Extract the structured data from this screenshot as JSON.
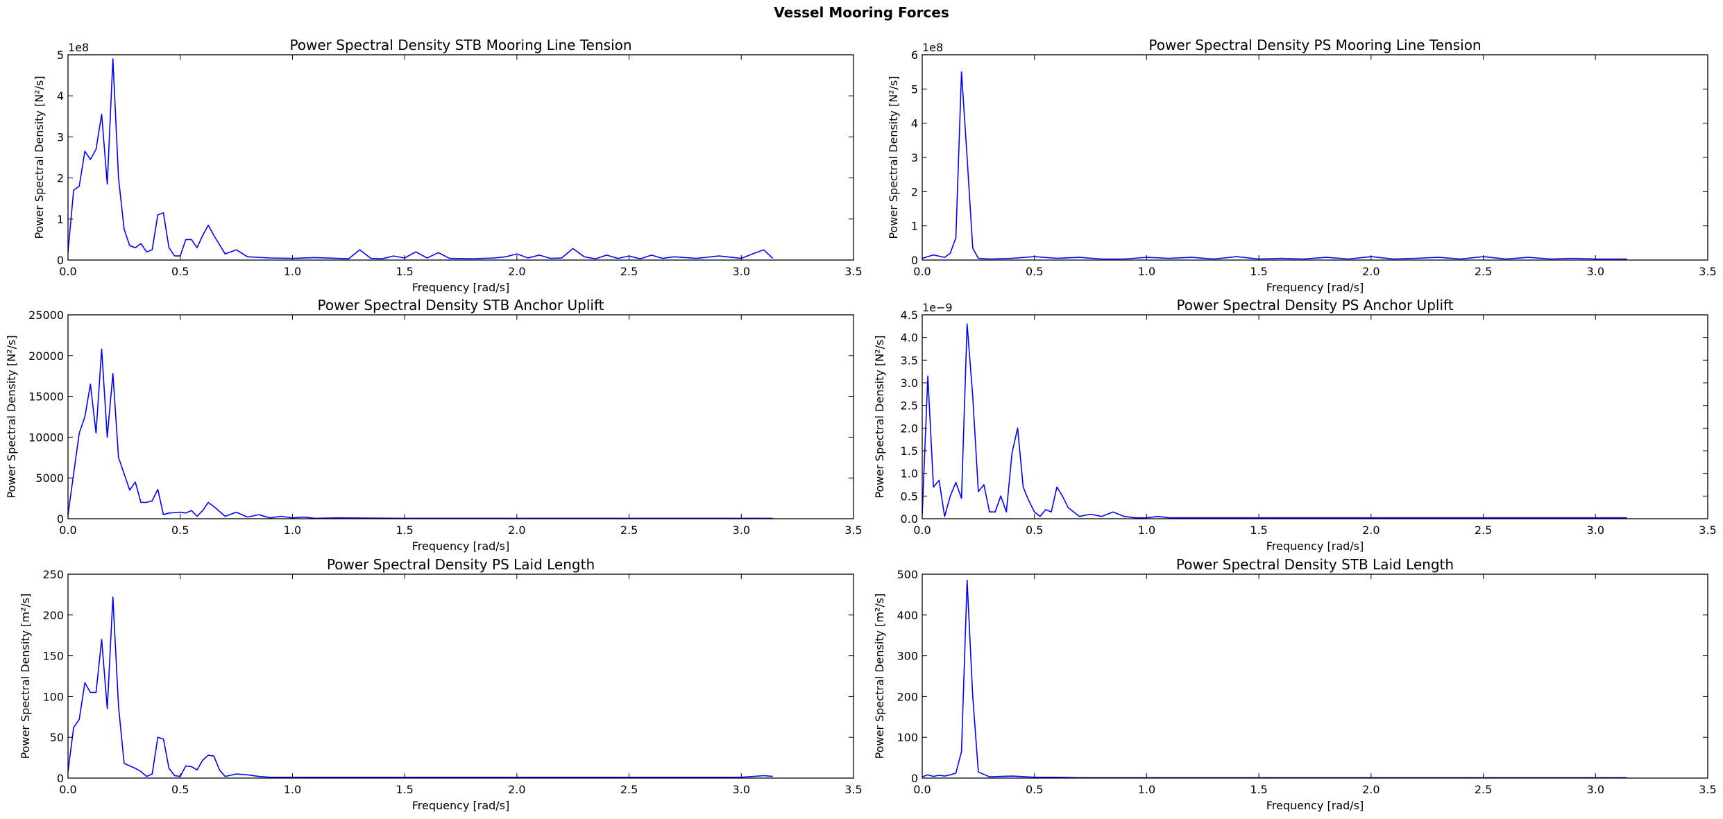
{
  "figure": {
    "title": "Vessel Mooring Forces"
  },
  "chart_data": [
    {
      "type": "line",
      "title": "Power Spectral Density STB Mooring Line Tension",
      "xlabel": "Frequency [rad/s]",
      "ylabel": "Power Spectral Density [N²/s]",
      "xlim": [
        0,
        3.5
      ],
      "ylim": [
        0,
        500000000
      ],
      "offset_label": "1e8",
      "xticks": [
        "0.0",
        "0.5",
        "1.0",
        "1.5",
        "2.0",
        "2.5",
        "3.0",
        "3.5"
      ],
      "yticks": [
        "0",
        "1",
        "2",
        "3",
        "4",
        "5"
      ],
      "ytick_scale": 100000000,
      "series": [
        {
          "color": "#0000ff",
          "x": [
            0.0,
            0.025,
            0.05,
            0.075,
            0.1,
            0.125,
            0.15,
            0.175,
            0.2,
            0.225,
            0.25,
            0.275,
            0.3,
            0.325,
            0.35,
            0.375,
            0.4,
            0.425,
            0.45,
            0.475,
            0.5,
            0.525,
            0.55,
            0.575,
            0.6,
            0.625,
            0.65,
            0.7,
            0.75,
            0.8,
            0.9,
            1.0,
            1.1,
            1.2,
            1.25,
            1.3,
            1.35,
            1.4,
            1.45,
            1.5,
            1.55,
            1.6,
            1.65,
            1.7,
            1.8,
            1.9,
            1.95,
            2.0,
            2.05,
            2.1,
            2.15,
            2.2,
            2.25,
            2.3,
            2.35,
            2.4,
            2.45,
            2.5,
            2.55,
            2.6,
            2.65,
            2.7,
            2.8,
            2.9,
            3.0,
            3.05,
            3.1,
            3.14
          ],
          "y": [
            20000000,
            170000000,
            180000000,
            265000000,
            245000000,
            270000000,
            355000000,
            185000000,
            490000000,
            200000000,
            75000000,
            35000000,
            30000000,
            40000000,
            20000000,
            25000000,
            110000000,
            115000000,
            30000000,
            10000000,
            10000000,
            50000000,
            50000000,
            30000000,
            60000000,
            85000000,
            60000000,
            15000000,
            25000000,
            8000000,
            5000000,
            4000000,
            6000000,
            4000000,
            3000000,
            25000000,
            4000000,
            3000000,
            10000000,
            5000000,
            20000000,
            5000000,
            18000000,
            4000000,
            3000000,
            5000000,
            8000000,
            15000000,
            5000000,
            12000000,
            4000000,
            5000000,
            28000000,
            8000000,
            3000000,
            12000000,
            4000000,
            10000000,
            3000000,
            12000000,
            4000000,
            8000000,
            4000000,
            10000000,
            4000000,
            15000000,
            25000000,
            4000000
          ]
        }
      ]
    },
    {
      "type": "line",
      "title": "Power Spectral Density PS Mooring Line Tension",
      "xlabel": "Frequency [rad/s]",
      "ylabel": "Power Spectral Density [N²/s]",
      "xlim": [
        0,
        3.5
      ],
      "ylim": [
        0,
        600000000
      ],
      "offset_label": "1e8",
      "xticks": [
        "0.0",
        "0.5",
        "1.0",
        "1.5",
        "2.0",
        "2.5",
        "3.0",
        "3.5"
      ],
      "yticks": [
        "0",
        "1",
        "2",
        "3",
        "4",
        "5",
        "6"
      ],
      "ytick_scale": 100000000,
      "series": [
        {
          "color": "#0000ff",
          "x": [
            0.0,
            0.05,
            0.1,
            0.125,
            0.15,
            0.175,
            0.2,
            0.225,
            0.25,
            0.3,
            0.4,
            0.5,
            0.6,
            0.7,
            0.8,
            0.9,
            1.0,
            1.1,
            1.2,
            1.3,
            1.4,
            1.5,
            1.6,
            1.7,
            1.8,
            1.9,
            2.0,
            2.1,
            2.2,
            2.3,
            2.4,
            2.5,
            2.6,
            2.7,
            2.8,
            2.9,
            3.0,
            3.14
          ],
          "y": [
            5000000,
            15000000,
            8000000,
            20000000,
            65000000,
            550000000,
            300000000,
            35000000,
            5000000,
            3000000,
            5000000,
            10000000,
            5000000,
            8000000,
            3000000,
            3000000,
            8000000,
            5000000,
            8000000,
            3000000,
            10000000,
            3000000,
            5000000,
            3000000,
            8000000,
            3000000,
            10000000,
            3000000,
            5000000,
            8000000,
            3000000,
            10000000,
            3000000,
            8000000,
            3000000,
            5000000,
            3000000,
            3000000
          ]
        }
      ]
    },
    {
      "type": "line",
      "title": "Power Spectral Density STB Anchor Uplift",
      "xlabel": "Frequency [rad/s]",
      "ylabel": "Power Spectral Density [N²/s]",
      "xlim": [
        0,
        3.5
      ],
      "ylim": [
        0,
        25000
      ],
      "xticks": [
        "0.0",
        "0.5",
        "1.0",
        "1.5",
        "2.0",
        "2.5",
        "3.0",
        "3.5"
      ],
      "yticks": [
        "0",
        "5000",
        "10000",
        "15000",
        "20000",
        "25000"
      ],
      "ytick_scale": 1,
      "series": [
        {
          "color": "#0000ff",
          "x": [
            0.0,
            0.025,
            0.05,
            0.075,
            0.1,
            0.125,
            0.15,
            0.175,
            0.2,
            0.225,
            0.25,
            0.275,
            0.3,
            0.325,
            0.35,
            0.375,
            0.4,
            0.425,
            0.45,
            0.5,
            0.525,
            0.55,
            0.575,
            0.6,
            0.625,
            0.65,
            0.7,
            0.75,
            0.8,
            0.85,
            0.9,
            0.95,
            1.0,
            1.05,
            1.1,
            1.2,
            1.5,
            2.0,
            2.5,
            3.0,
            3.14
          ],
          "y": [
            500,
            5500,
            10500,
            12500,
            16500,
            10500,
            20800,
            10000,
            17800,
            7500,
            5500,
            3500,
            4500,
            2000,
            2000,
            2200,
            3600,
            500,
            700,
            800,
            700,
            1000,
            300,
            1000,
            2000,
            1500,
            300,
            800,
            200,
            500,
            100,
            300,
            100,
            200,
            50,
            100,
            50,
            50,
            50,
            50,
            50
          ]
        }
      ]
    },
    {
      "type": "line",
      "title": "Power Spectral Density PS Anchor Uplift",
      "xlabel": "Frequency [rad/s]",
      "ylabel": "Power Spectral Density [N²/s]",
      "xlim": [
        0,
        3.5
      ],
      "ylim": [
        0,
        4.5
      ],
      "offset_label": "1e−9",
      "xticks": [
        "0.0",
        "0.5",
        "1.0",
        "1.5",
        "2.0",
        "2.5",
        "3.0",
        "3.5"
      ],
      "yticks": [
        "0.0",
        "0.5",
        "1.0",
        "1.5",
        "2.0",
        "2.5",
        "3.0",
        "3.5",
        "4.0",
        "4.5"
      ],
      "ytick_scale": 1,
      "series": [
        {
          "color": "#0000ff",
          "x": [
            0.0,
            0.025,
            0.05,
            0.075,
            0.1,
            0.125,
            0.15,
            0.175,
            0.2,
            0.225,
            0.25,
            0.275,
            0.3,
            0.325,
            0.35,
            0.375,
            0.4,
            0.425,
            0.45,
            0.475,
            0.5,
            0.525,
            0.55,
            0.575,
            0.6,
            0.625,
            0.65,
            0.7,
            0.75,
            0.8,
            0.85,
            0.9,
            0.95,
            1.0,
            1.05,
            1.1,
            1.2,
            1.5,
            2.0,
            2.5,
            3.0,
            3.14
          ],
          "y": [
            0.1,
            3.15,
            0.7,
            0.85,
            0.05,
            0.5,
            0.8,
            0.45,
            4.3,
            2.7,
            0.6,
            0.75,
            0.15,
            0.15,
            0.5,
            0.15,
            1.45,
            2.0,
            0.7,
            0.4,
            0.15,
            0.05,
            0.2,
            0.15,
            0.7,
            0.5,
            0.25,
            0.05,
            0.1,
            0.05,
            0.15,
            0.05,
            0.02,
            0.02,
            0.05,
            0.02,
            0.02,
            0.02,
            0.02,
            0.02,
            0.02,
            0.02
          ]
        }
      ]
    },
    {
      "type": "line",
      "title": "Power Spectral Density PS Laid Length",
      "xlabel": "Frequency [rad/s]",
      "ylabel": "Power Spectral Density [m²/s]",
      "xlim": [
        0,
        3.5
      ],
      "ylim": [
        0,
        250
      ],
      "xticks": [
        "0.0",
        "0.5",
        "1.0",
        "1.5",
        "2.0",
        "2.5",
        "3.0",
        "3.5"
      ],
      "yticks": [
        "0",
        "50",
        "100",
        "150",
        "200",
        "250"
      ],
      "ytick_scale": 1,
      "series": [
        {
          "color": "#0000ff",
          "x": [
            0.0,
            0.025,
            0.05,
            0.075,
            0.1,
            0.125,
            0.15,
            0.175,
            0.2,
            0.225,
            0.25,
            0.275,
            0.3,
            0.325,
            0.35,
            0.375,
            0.4,
            0.425,
            0.45,
            0.475,
            0.5,
            0.525,
            0.55,
            0.575,
            0.6,
            0.625,
            0.65,
            0.675,
            0.7,
            0.75,
            0.8,
            0.85,
            0.9,
            1.0,
            1.5,
            2.0,
            2.5,
            3.0,
            3.1,
            3.14
          ],
          "y": [
            8,
            62,
            72,
            117,
            105,
            105,
            170,
            85,
            222,
            88,
            18,
            15,
            12,
            8,
            2,
            5,
            50,
            48,
            12,
            3,
            2,
            15,
            14,
            10,
            22,
            28,
            27,
            10,
            2,
            5,
            4,
            2,
            1,
            1,
            1,
            1,
            1,
            1,
            3,
            2
          ]
        }
      ]
    },
    {
      "type": "line",
      "title": "Power Spectral Density STB Laid Length",
      "xlabel": "Frequency [rad/s]",
      "ylabel": "Power Spectral Density [m²/s]",
      "xlim": [
        0,
        3.5
      ],
      "ylim": [
        0,
        500
      ],
      "xticks": [
        "0.0",
        "0.5",
        "1.0",
        "1.5",
        "2.0",
        "2.5",
        "3.0",
        "3.5"
      ],
      "yticks": [
        "0",
        "100",
        "200",
        "300",
        "400",
        "500"
      ],
      "ytick_scale": 1,
      "series": [
        {
          "color": "#0000ff",
          "x": [
            0.0,
            0.025,
            0.05,
            0.075,
            0.1,
            0.125,
            0.15,
            0.175,
            0.2,
            0.225,
            0.25,
            0.3,
            0.4,
            0.5,
            0.6,
            0.7,
            1.0,
            1.5,
            2.0,
            2.5,
            3.0,
            3.14
          ],
          "y": [
            3,
            8,
            4,
            7,
            5,
            8,
            12,
            65,
            485,
            200,
            15,
            3,
            5,
            2,
            2,
            1,
            1,
            1,
            1,
            1,
            1,
            1
          ]
        }
      ]
    }
  ]
}
